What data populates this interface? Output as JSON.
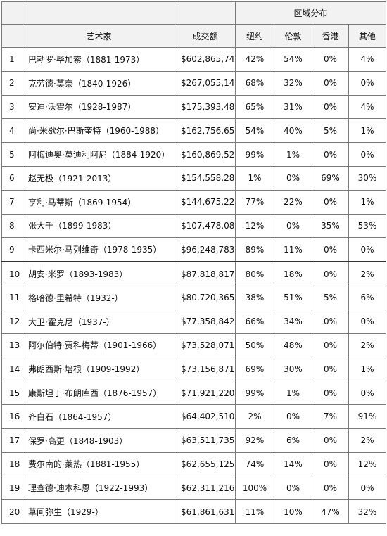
{
  "table": {
    "headers": {
      "region_group": "区域分布",
      "artist": "艺术家",
      "amount": "成交额",
      "regions": [
        "纽约",
        "伦敦",
        "香港",
        "其他"
      ]
    },
    "rows": [
      {
        "rank": "1",
        "artist": "巴勃罗·毕加索（1881-1973）",
        "amount": "$602,865,747",
        "ny": "42%",
        "london": "54%",
        "hk": "0%",
        "other": "4%"
      },
      {
        "rank": "2",
        "artist": "克劳德·莫奈（1840-1926）",
        "amount": "$267,055,149",
        "ny": "68%",
        "london": "32%",
        "hk": "0%",
        "other": "0%"
      },
      {
        "rank": "3",
        "artist": "安迪·沃霍尔（1928-1987）",
        "amount": "$175,393,487",
        "ny": "65%",
        "london": "31%",
        "hk": "0%",
        "other": "4%"
      },
      {
        "rank": "4",
        "artist": "尚·米歇尔·巴斯奎特（1960-1988）",
        "amount": "$162,756,656",
        "ny": "54%",
        "london": "40%",
        "hk": "5%",
        "other": "1%"
      },
      {
        "rank": "5",
        "artist": "阿梅迪奥·莫迪利阿尼（1884-1920）",
        "amount": "$160,869,523",
        "ny": "99%",
        "london": "1%",
        "hk": "0%",
        "other": "0%"
      },
      {
        "rank": "6",
        "artist": "赵无极（1921-2013）",
        "amount": "$154,558,288",
        "ny": "1%",
        "london": "0%",
        "hk": "69%",
        "other": "30%"
      },
      {
        "rank": "7",
        "artist": "亨利·马蒂斯（1869-1954）",
        "amount": "$144,675,227",
        "ny": "77%",
        "london": "22%",
        "hk": "0%",
        "other": "1%"
      },
      {
        "rank": "8",
        "artist": "张大千（1899-1983）",
        "amount": "$107,478,086",
        "ny": "12%",
        "london": "0%",
        "hk": "35%",
        "other": "53%"
      },
      {
        "rank": "9",
        "artist": "卡西米尔·马列维奇（1978-1935）",
        "amount": "$96,248,783",
        "ny": "89%",
        "london": "11%",
        "hk": "0%",
        "other": "0%"
      },
      {
        "rank": "10",
        "artist": "胡安·米罗（1893-1983）",
        "amount": "$87,818,817",
        "ny": "80%",
        "london": "18%",
        "hk": "0%",
        "other": "2%"
      },
      {
        "rank": "11",
        "artist": "格哈德·里希特（1932-）",
        "amount": "$80,720,365",
        "ny": "38%",
        "london": "51%",
        "hk": "5%",
        "other": "6%"
      },
      {
        "rank": "12",
        "artist": "大卫·霍克尼（1937-）",
        "amount": "$77,358,842",
        "ny": "66%",
        "london": "34%",
        "hk": "0%",
        "other": "0%"
      },
      {
        "rank": "13",
        "artist": "阿尔伯特·贾科梅蒂（1901-1966）",
        "amount": "$73,528,071",
        "ny": "50%",
        "london": "48%",
        "hk": "0%",
        "other": "2%"
      },
      {
        "rank": "14",
        "artist": "弗朗西斯·培根（1909-1992）",
        "amount": "$73,156,871",
        "ny": "69%",
        "london": "30%",
        "hk": "0%",
        "other": "1%"
      },
      {
        "rank": "15",
        "artist": "康斯坦丁·布朗库西（1876-1957）",
        "amount": "$71,921,220",
        "ny": "99%",
        "london": "1%",
        "hk": "0%",
        "other": "0%"
      },
      {
        "rank": "16",
        "artist": "齐白石（1864-1957）",
        "amount": "$64,402,510",
        "ny": "2%",
        "london": "0%",
        "hk": "7%",
        "other": "91%"
      },
      {
        "rank": "17",
        "artist": "保罗·高更（1848-1903）",
        "amount": "$63,511,735",
        "ny": "92%",
        "london": "6%",
        "hk": "0%",
        "other": "2%"
      },
      {
        "rank": "18",
        "artist": "费尔南的·莱热（1881-1955）",
        "amount": "$62,655,125",
        "ny": "74%",
        "london": "14%",
        "hk": "0%",
        "other": "12%"
      },
      {
        "rank": "19",
        "artist": "理查德·迪本科恩（1922-1993）",
        "amount": "$62,311,216",
        "ny": "100%",
        "london": "0%",
        "hk": "0%",
        "other": "0%"
      },
      {
        "rank": "20",
        "artist": "草间弥生（1929-）",
        "amount": "$61,861,631",
        "ny": "11%",
        "london": "10%",
        "hk": "47%",
        "other": "32%"
      }
    ]
  }
}
